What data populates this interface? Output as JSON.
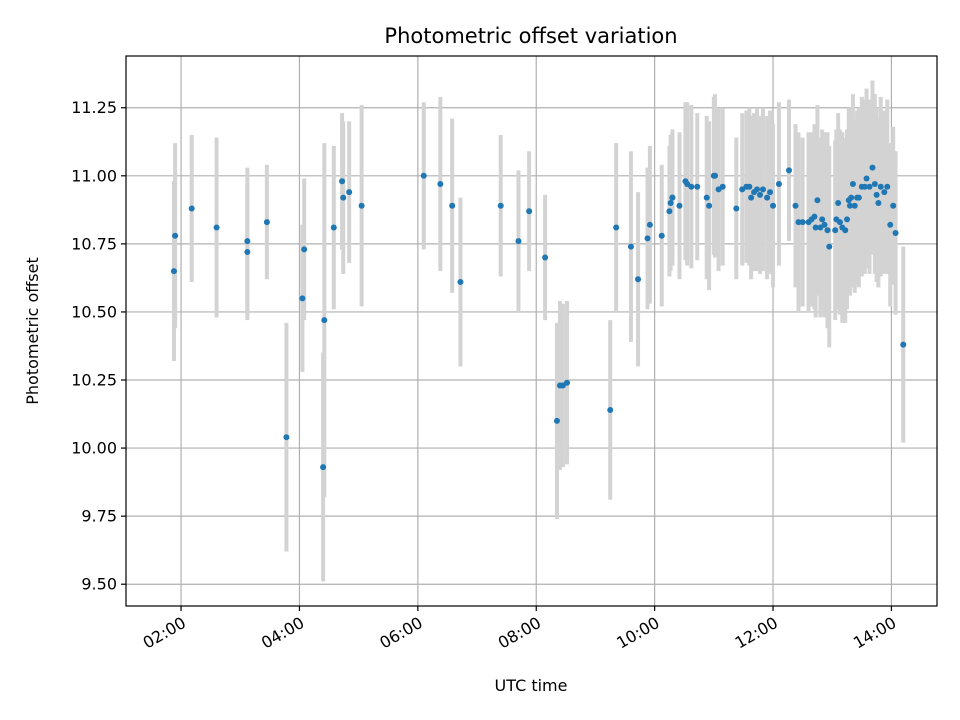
{
  "chart_data": {
    "type": "scatter",
    "title": "Photometric offset variation",
    "xlabel": "UTC time",
    "ylabel": "Photometric offset",
    "x_unit": "hours (UTC)",
    "xlim": [
      1.07,
      14.77
    ],
    "ylim": [
      9.42,
      11.44
    ],
    "xticks": [
      2,
      4,
      6,
      8,
      10,
      12,
      14
    ],
    "xtick_labels": [
      "02:00",
      "04:00",
      "06:00",
      "08:00",
      "10:00",
      "12:00",
      "14:00"
    ],
    "yticks": [
      9.5,
      9.75,
      10.0,
      10.25,
      10.5,
      10.75,
      11.0,
      11.25
    ],
    "ytick_labels": [
      "9.50",
      "9.75",
      "10.00",
      "10.25",
      "10.50",
      "10.75",
      "11.00",
      "11.25"
    ],
    "grid": true,
    "legend": "none",
    "colors": {
      "points": "#1f77b4",
      "errorbars": "#d3d3d3",
      "grid": "#b0b0b0"
    },
    "series": [
      {
        "x": [
          1.88,
          1.9,
          2.18,
          2.6,
          3.12,
          3.12,
          3.45,
          3.78,
          4.05,
          4.08,
          4.42,
          4.4,
          4.58,
          4.72,
          4.74,
          4.84,
          5.05,
          6.1,
          6.38,
          6.58,
          6.72,
          7.4,
          7.7,
          7.88,
          8.15,
          8.35,
          8.4,
          8.45,
          8.52,
          9.25,
          9.35,
          9.6,
          9.72,
          9.88,
          9.92,
          10.12,
          10.25,
          10.27,
          10.3,
          10.3,
          10.42,
          10.52,
          10.55,
          10.62,
          10.72,
          10.88,
          10.92,
          11.0,
          11.02,
          11.08,
          11.15,
          11.38,
          11.48,
          11.55,
          11.6,
          11.63,
          11.68,
          11.73,
          11.78,
          11.83,
          11.9,
          11.95,
          12.0,
          12.1,
          12.27,
          12.38,
          12.43,
          12.5,
          12.6,
          12.65,
          12.7,
          12.72,
          12.75,
          12.8,
          12.83,
          12.87,
          12.92,
          12.95,
          13.05,
          13.07,
          13.1,
          13.13,
          13.17,
          13.22,
          13.25,
          13.28,
          13.3,
          13.32,
          13.35,
          13.38,
          13.42,
          13.45,
          13.5,
          13.55,
          13.58,
          13.63,
          13.68,
          13.72,
          13.75,
          13.78,
          13.82,
          13.88,
          13.93,
          13.98,
          14.03,
          14.07,
          14.2
        ],
        "y": [
          10.65,
          10.78,
          10.88,
          10.81,
          10.76,
          10.72,
          10.83,
          10.04,
          10.55,
          10.73,
          10.47,
          9.93,
          10.81,
          10.98,
          10.92,
          10.94,
          10.89,
          11.0,
          10.97,
          10.89,
          10.61,
          10.89,
          10.76,
          10.87,
          10.7,
          10.1,
          10.23,
          10.23,
          10.24,
          10.14,
          10.81,
          10.74,
          10.62,
          10.77,
          10.82,
          10.78,
          10.87,
          10.9,
          10.92,
          10.92,
          10.89,
          10.98,
          10.97,
          10.96,
          10.96,
          10.92,
          10.89,
          11.0,
          11.0,
          10.95,
          10.96,
          10.88,
          10.95,
          10.96,
          10.96,
          10.92,
          10.94,
          10.95,
          10.93,
          10.95,
          10.92,
          10.94,
          10.89,
          10.97,
          11.02,
          10.89,
          10.83,
          10.83,
          10.83,
          10.84,
          10.85,
          10.81,
          10.91,
          10.81,
          10.84,
          10.82,
          10.8,
          10.74,
          10.8,
          10.84,
          10.9,
          10.83,
          10.81,
          10.8,
          10.84,
          10.91,
          10.89,
          10.92,
          10.97,
          10.89,
          10.92,
          10.92,
          10.96,
          10.96,
          10.99,
          10.96,
          11.03,
          10.97,
          10.93,
          10.9,
          10.96,
          10.94,
          10.96,
          10.82,
          10.89,
          10.79,
          10.38
        ],
        "yerr": [
          0.33,
          0.34,
          0.27,
          0.33,
          0.27,
          0.25,
          0.21,
          0.42,
          0.27,
          0.26,
          0.65,
          0.42,
          0.3,
          0.25,
          0.28,
          0.26,
          0.37,
          0.27,
          0.32,
          0.32,
          0.31,
          0.26,
          0.26,
          0.22,
          0.23,
          0.36,
          0.31,
          0.3,
          0.3,
          0.33,
          0.31,
          0.35,
          0.32,
          0.26,
          0.29,
          0.26,
          0.24,
          0.25,
          0.24,
          0.25,
          0.27,
          0.29,
          0.3,
          0.3,
          0.27,
          0.3,
          0.31,
          0.29,
          0.3,
          0.3,
          0.29,
          0.26,
          0.28,
          0.28,
          0.29,
          0.3,
          0.29,
          0.3,
          0.29,
          0.3,
          0.3,
          0.3,
          0.3,
          0.3,
          0.26,
          0.3,
          0.33,
          0.31,
          0.33,
          0.32,
          0.34,
          0.33,
          0.35,
          0.33,
          0.33,
          0.34,
          0.36,
          0.37,
          0.33,
          0.33,
          0.33,
          0.34,
          0.35,
          0.34,
          0.33,
          0.34,
          0.33,
          0.33,
          0.33,
          0.32,
          0.32,
          0.33,
          0.33,
          0.32,
          0.33,
          0.32,
          0.32,
          0.33,
          0.32,
          0.31,
          0.33,
          0.3,
          0.32,
          0.3,
          0.29,
          0.3,
          0.36
        ]
      }
    ]
  }
}
